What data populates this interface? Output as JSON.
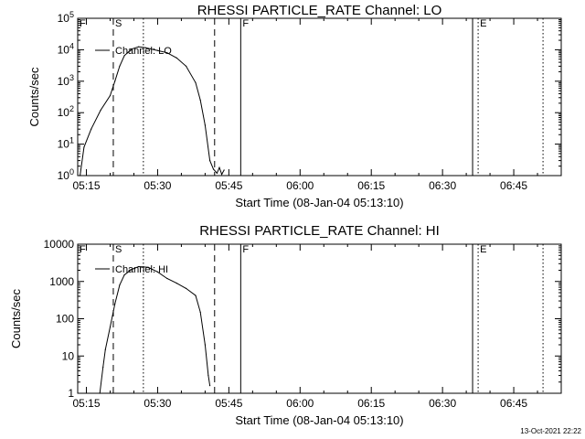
{
  "chart_data": [
    {
      "type": "line",
      "title": "RHESSI PARTICLE_RATE Channel: LO",
      "xlabel": "Start Time (08-Jan-04 05:13:10)",
      "ylabel": "Counts/sec",
      "yscale": "log",
      "ylim": [
        1,
        100000
      ],
      "xlim": [
        "05:13:10",
        "06:55:00"
      ],
      "x_ticks": [
        "05:15",
        "05:30",
        "05:45",
        "06:00",
        "06:15",
        "06:30",
        "06:45"
      ],
      "y_ticks": [
        "10^0",
        "10^1",
        "10^2",
        "10^3",
        "10^4",
        "10^5"
      ],
      "y_tick_exponents": [
        0,
        1,
        2,
        3,
        4,
        5
      ],
      "legend": "top-left",
      "series": [
        {
          "name": "Channel: LO",
          "x": [
            "05:13:40",
            "05:14:30",
            "05:16:00",
            "05:18:00",
            "05:20:00",
            "05:21:00",
            "05:22:00",
            "05:23:00",
            "05:24:30",
            "05:26:00",
            "05:27:30",
            "05:30:00",
            "05:32:00",
            "05:34:00",
            "05:36:00",
            "05:38:00",
            "05:39:00",
            "05:40:00",
            "05:41:00",
            "05:41:45",
            "05:42:30",
            "05:43:00",
            "05:43:30",
            "05:44:00"
          ],
          "y": [
            1,
            8,
            30,
            120,
            350,
            1000,
            3000,
            6500,
            10500,
            12500,
            11500,
            9500,
            8000,
            5500,
            3000,
            900,
            250,
            40,
            3,
            1.6,
            1.2,
            1.8,
            1.1,
            1.5
          ]
        }
      ],
      "markers": [
        {
          "label": "F",
          "time": "05:13:10",
          "style": "dotted"
        },
        {
          "label": "S",
          "time": "05:20:40",
          "style": "dashed"
        },
        {
          "label": "",
          "time": "05:27:00",
          "style": "dotted"
        },
        {
          "label": "",
          "time": "05:42:00",
          "style": "dashed"
        },
        {
          "label": "F",
          "time": "05:47:30",
          "style": "solid"
        },
        {
          "label": "",
          "time": "06:36:20",
          "style": "solid"
        },
        {
          "label": "E",
          "time": "06:37:30",
          "style": "dotted"
        },
        {
          "label": "",
          "time": "06:51:10",
          "style": "dotted"
        }
      ]
    },
    {
      "type": "line",
      "title": "RHESSI PARTICLE_RATE Channel: HI",
      "xlabel": "Start Time (08-Jan-04 05:13:10)",
      "ylabel": "Counts/sec",
      "yscale": "log",
      "ylim": [
        1,
        10000
      ],
      "xlim": [
        "05:13:10",
        "06:55:00"
      ],
      "x_ticks": [
        "05:15",
        "05:30",
        "05:45",
        "06:00",
        "06:15",
        "06:30",
        "06:45"
      ],
      "y_ticks": [
        "1",
        "10",
        "100",
        "1000",
        "10000"
      ],
      "y_tick_exponents": [
        0,
        1,
        2,
        3,
        4
      ],
      "legend": "top-left",
      "series": [
        {
          "name": "Channel: HI",
          "x": [
            "05:17:50",
            "05:18:30",
            "05:19:00",
            "05:20:00",
            "05:21:00",
            "05:22:00",
            "05:23:00",
            "05:24:30",
            "05:26:00",
            "05:28:00",
            "05:30:00",
            "05:32:00",
            "05:34:00",
            "05:36:00",
            "05:38:00",
            "05:39:00",
            "05:40:00",
            "05:40:40",
            "05:41:00"
          ],
          "y": [
            1,
            5,
            15,
            60,
            250,
            800,
            1500,
            2100,
            2500,
            2400,
            1800,
            1200,
            900,
            650,
            420,
            150,
            20,
            3,
            1.6
          ]
        }
      ],
      "markers": [
        {
          "label": "F",
          "time": "05:13:10",
          "style": "dotted"
        },
        {
          "label": "S",
          "time": "05:20:40",
          "style": "dashed"
        },
        {
          "label": "",
          "time": "05:27:00",
          "style": "dotted"
        },
        {
          "label": "",
          "time": "05:42:00",
          "style": "dashed"
        },
        {
          "label": "F",
          "time": "05:47:30",
          "style": "solid"
        },
        {
          "label": "",
          "time": "06:36:20",
          "style": "solid"
        },
        {
          "label": "E",
          "time": "06:37:30",
          "style": "dotted"
        },
        {
          "label": "",
          "time": "06:51:10",
          "style": "dotted"
        }
      ]
    }
  ],
  "footer": "13-Oct-2021 22:22"
}
